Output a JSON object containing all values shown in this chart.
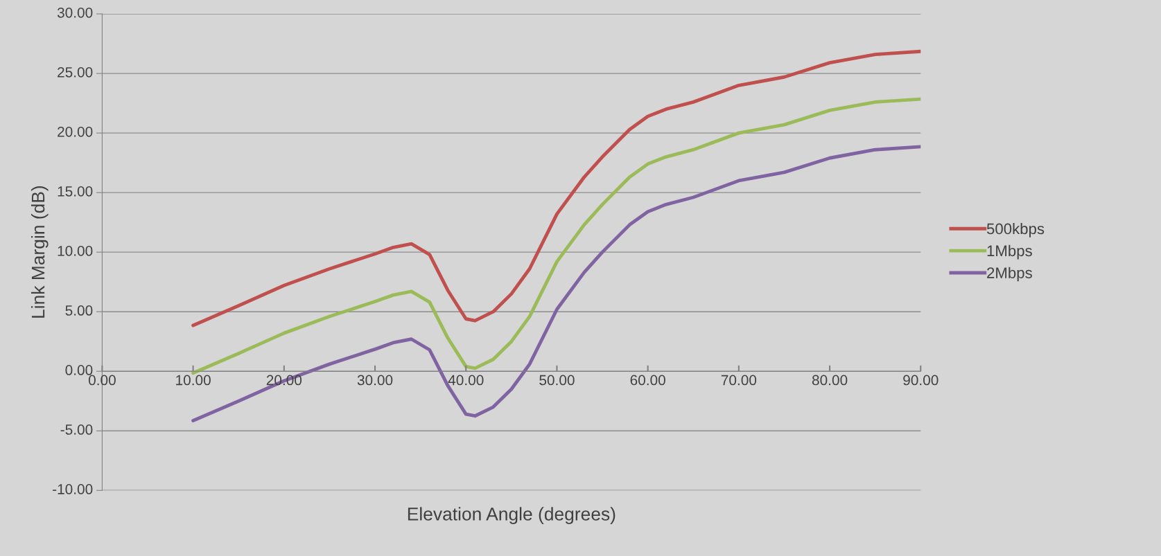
{
  "chart_data": {
    "type": "line",
    "xlabel": "Elevation Angle (degrees)",
    "ylabel": "Link Margin (dB)",
    "x": [
      10,
      15,
      20,
      25,
      30,
      32,
      34,
      36,
      38,
      40,
      41,
      43,
      45,
      47,
      50,
      53,
      55,
      58,
      60,
      62,
      65,
      70,
      75,
      80,
      85,
      90
    ],
    "series": [
      {
        "name": "500kbps",
        "color": "#c0504d",
        "values": [
          3.85,
          5.5,
          7.2,
          8.6,
          9.85,
          10.4,
          10.7,
          9.8,
          6.8,
          4.4,
          4.25,
          5.0,
          6.5,
          8.6,
          13.2,
          16.3,
          18.0,
          20.3,
          21.4,
          22.0,
          22.6,
          24.0,
          24.7,
          25.9,
          26.6,
          26.85
        ]
      },
      {
        "name": "1Mbps",
        "color": "#9bbb59",
        "values": [
          -0.15,
          1.5,
          3.2,
          4.6,
          5.85,
          6.4,
          6.7,
          5.8,
          2.8,
          0.4,
          0.25,
          1.0,
          2.5,
          4.6,
          9.2,
          12.3,
          14.0,
          16.3,
          17.4,
          18.0,
          18.6,
          20.0,
          20.7,
          21.9,
          22.6,
          22.85
        ]
      },
      {
        "name": "2Mbps",
        "color": "#8064a2",
        "values": [
          -4.15,
          -2.5,
          -0.8,
          0.6,
          1.85,
          2.4,
          2.7,
          1.8,
          -1.2,
          -3.6,
          -3.75,
          -3.0,
          -1.5,
          0.6,
          5.2,
          8.3,
          10.0,
          12.3,
          13.4,
          14.0,
          14.6,
          16.0,
          16.7,
          17.9,
          18.6,
          18.85
        ]
      }
    ],
    "xlim": [
      0,
      90
    ],
    "ylim": [
      -10,
      30
    ],
    "xticks": [
      {
        "value": 0,
        "label": "0.00"
      },
      {
        "value": 10,
        "label": "10.00"
      },
      {
        "value": 20,
        "label": "20.00"
      },
      {
        "value": 30,
        "label": "30.00"
      },
      {
        "value": 40,
        "label": "40.00"
      },
      {
        "value": 50,
        "label": "50.00"
      },
      {
        "value": 60,
        "label": "60.00"
      },
      {
        "value": 70,
        "label": "70.00"
      },
      {
        "value": 80,
        "label": "80.00"
      },
      {
        "value": 90,
        "label": "90.00"
      }
    ],
    "yticks": [
      {
        "value": -10,
        "label": "-10.00"
      },
      {
        "value": -5,
        "label": "-5.00"
      },
      {
        "value": 0,
        "label": "0.00"
      },
      {
        "value": 5,
        "label": "5.00"
      },
      {
        "value": 10,
        "label": "10.00"
      },
      {
        "value": 15,
        "label": "15.00"
      },
      {
        "value": 20,
        "label": "20.00"
      },
      {
        "value": 25,
        "label": "25.00"
      },
      {
        "value": 30,
        "label": "30.00"
      }
    ],
    "grid": "y",
    "legend": "right",
    "marker": "none",
    "line_style": "solid"
  }
}
